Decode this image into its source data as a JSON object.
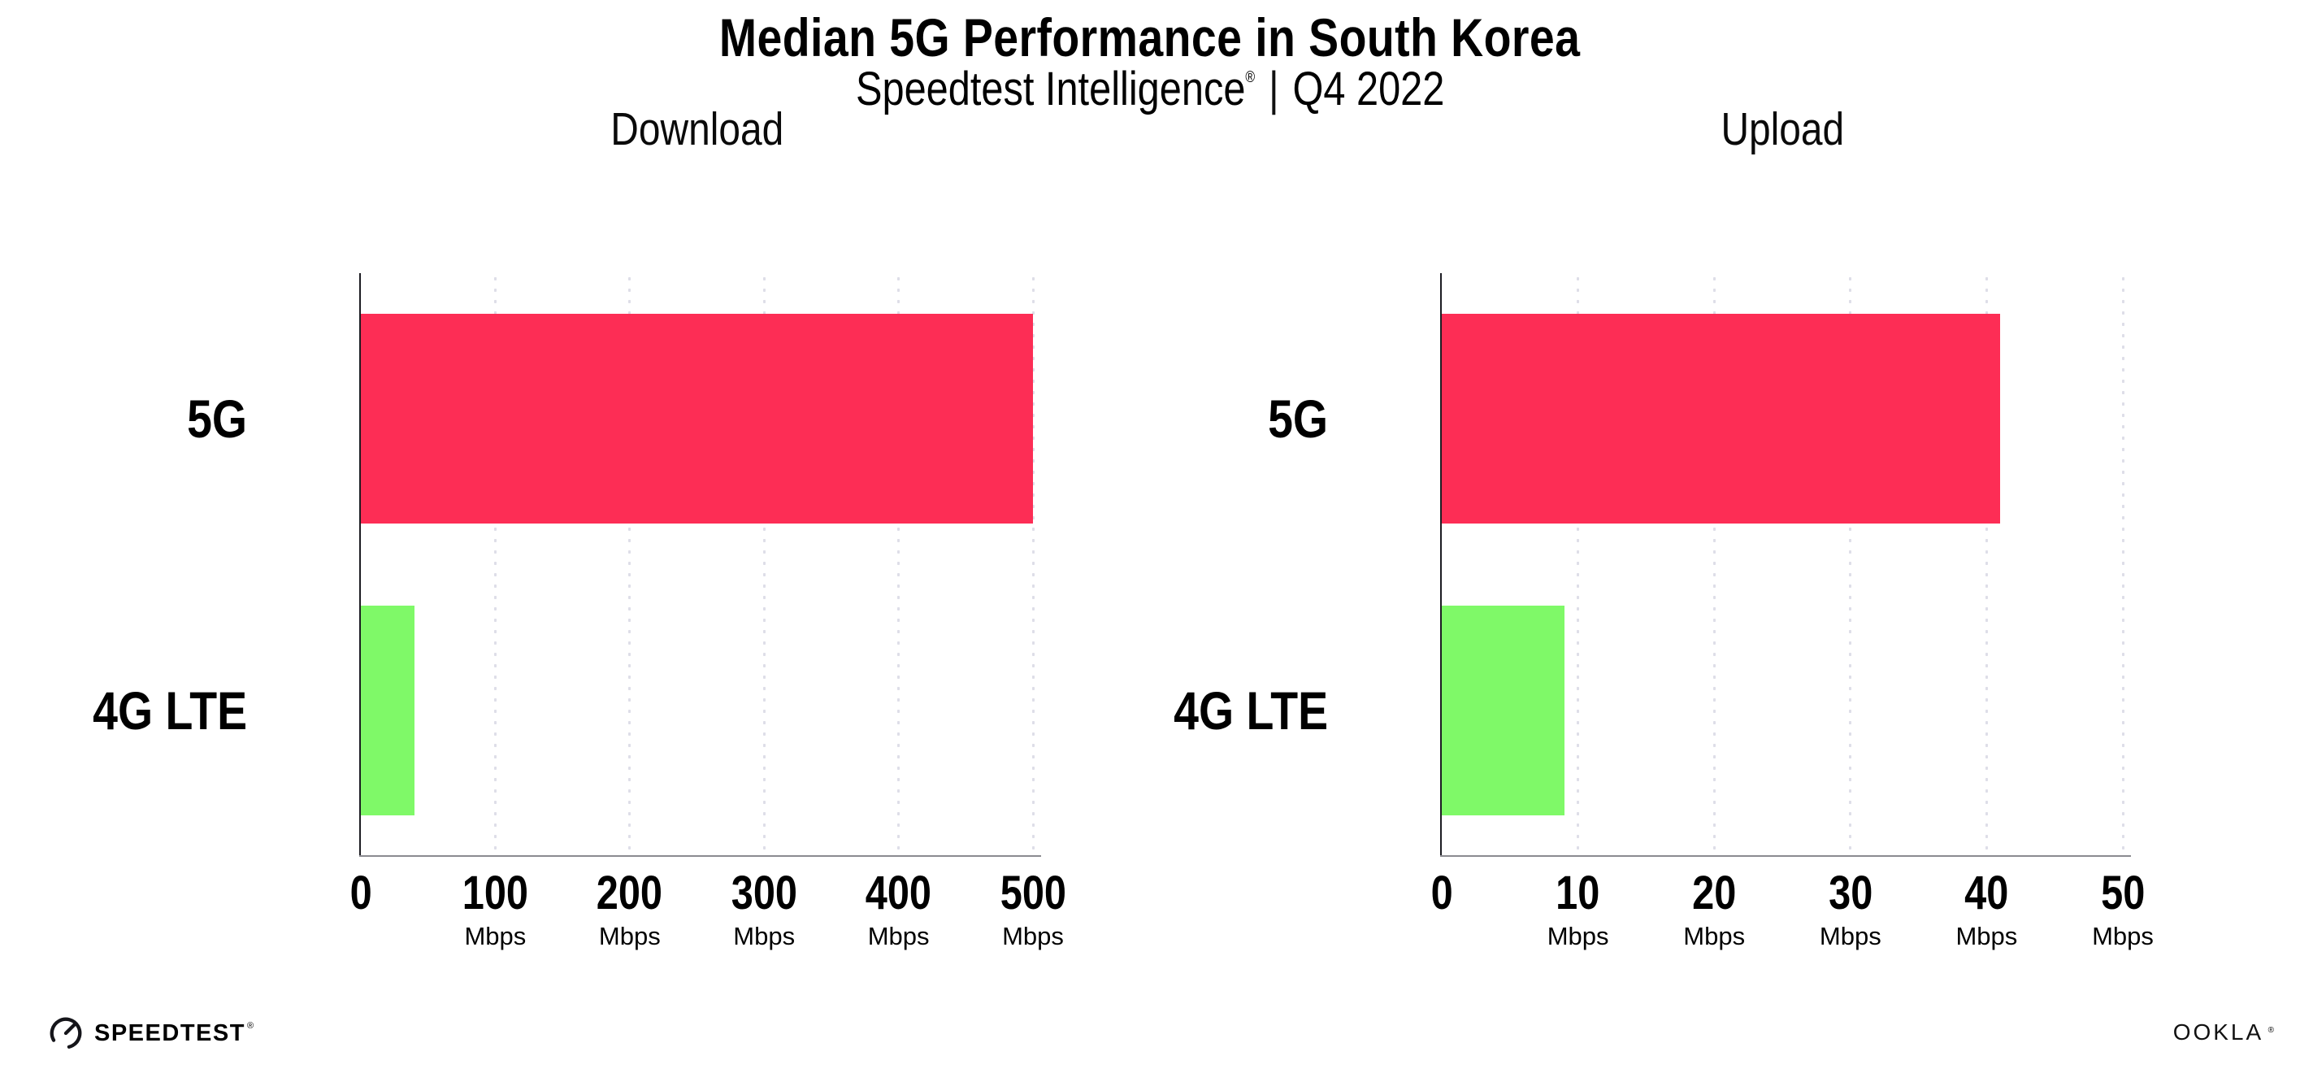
{
  "page": {
    "background": "#ffffff"
  },
  "header": {
    "title": "Median 5G Performance in South Korea",
    "subtitle": {
      "brand": "Speedtest Intelligence",
      "registered_mark": "®",
      "separator": "|",
      "period": "Q4 2022"
    }
  },
  "footer": {
    "speedtest": {
      "label": "SPEEDTEST",
      "mark": "®",
      "icon": "speedtest-gauge-icon"
    },
    "ookla": {
      "label": "OOKLA",
      "mark": "®"
    }
  },
  "colors": {
    "bar_5g": "#FD2D55",
    "bar_4g_lte": "#7FF968",
    "gridline": "#DEDEE8",
    "y_axis": "#1C1C22",
    "x_axis": "#8B8B90",
    "text": "#000000"
  },
  "chart_data": [
    {
      "type": "bar",
      "orientation": "horizontal",
      "title": "Download",
      "categories": [
        "5G",
        "4G LTE"
      ],
      "values": [
        500,
        40
      ],
      "value_unit": "Mbps",
      "xlim": [
        0,
        500
      ],
      "xticks": [
        0,
        100,
        200,
        300,
        400,
        500
      ],
      "tick_unit": "Mbps",
      "grid": "dotted-vertical",
      "legend": "none",
      "bar_colors": [
        "#FD2D55",
        "#7FF968"
      ]
    },
    {
      "type": "bar",
      "orientation": "horizontal",
      "title": "Upload",
      "categories": [
        "5G",
        "4G LTE"
      ],
      "values": [
        41,
        9
      ],
      "value_unit": "Mbps",
      "xlim": [
        0,
        50
      ],
      "xticks": [
        0,
        10,
        20,
        30,
        40,
        50
      ],
      "tick_unit": "Mbps",
      "grid": "dotted-vertical",
      "legend": "none",
      "bar_colors": [
        "#FD2D55",
        "#7FF968"
      ]
    }
  ]
}
